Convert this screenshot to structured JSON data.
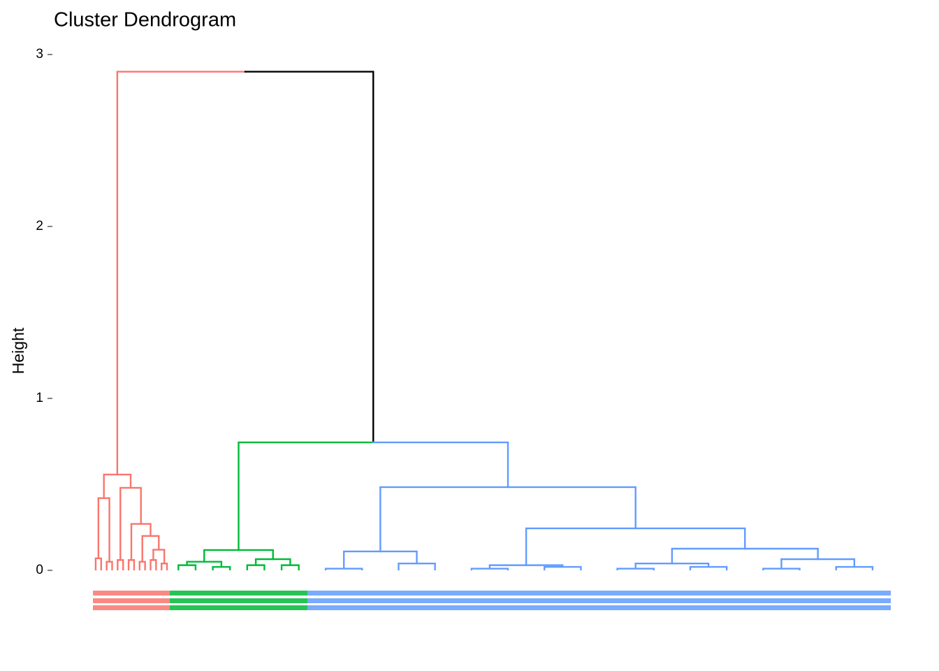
{
  "chart_data": {
    "type": "dendrogram",
    "title": "Cluster Dendrogram",
    "y_label": "Height",
    "ylim": [
      0,
      3
    ],
    "yticks": [
      0,
      1,
      2,
      3
    ],
    "tree": {
      "height": 2.9,
      "color": "#000000",
      "children": [
        {
          "height": 0.557,
          "color": "#F8766D",
          "children": [
            {
              "height": 0.42,
              "children": [
                {
                  "height": 0.07
                },
                {
                  "height": 0.05
                }
              ]
            },
            {
              "height": 0.48,
              "children": [
                {
                  "height": 0.06
                },
                {
                  "height": 0.27,
                  "children": [
                    {
                      "height": 0.06
                    },
                    {
                      "height": 0.2,
                      "children": [
                        {
                          "height": 0.05
                        },
                        {
                          "height": 0.12,
                          "children": [
                            {
                              "height": 0.06
                            },
                            {
                              "height": 0.04
                            }
                          ]
                        }
                      ]
                    }
                  ]
                }
              ]
            }
          ]
        },
        {
          "height": 0.744,
          "color": "#000000",
          "children": [
            {
              "height": 0.118,
              "color": "#00BA38",
              "children": [
                {
                  "height": 0.05,
                  "children": [
                    {
                      "height": 0.03
                    },
                    {
                      "height": 0.02
                    }
                  ]
                },
                {
                  "height": 0.065,
                  "children": [
                    {
                      "height": 0.03
                    },
                    {
                      "height": 0.03
                    }
                  ]
                }
              ]
            },
            {
              "height": 0.484,
              "color": "#619CFF",
              "children": [
                {
                  "height": 0.11,
                  "children": [
                    {
                      "height": 0.01
                    },
                    {
                      "height": 0.04
                    }
                  ]
                },
                {
                  "height": 0.244,
                  "children": [
                    {
                      "height": 0.03,
                      "children": [
                        {
                          "height": 0.01
                        },
                        {
                          "height": 0.02
                        }
                      ]
                    },
                    {
                      "height": 0.126,
                      "children": [
                        {
                          "height": 0.04,
                          "children": [
                            {
                              "height": 0.01
                            },
                            {
                              "height": 0.02
                            }
                          ]
                        },
                        {
                          "height": 0.065,
                          "children": [
                            {
                              "height": 0.01
                            },
                            {
                              "height": 0.02
                            }
                          ]
                        }
                      ]
                    }
                  ]
                }
              ]
            }
          ]
        }
      ]
    }
  }
}
